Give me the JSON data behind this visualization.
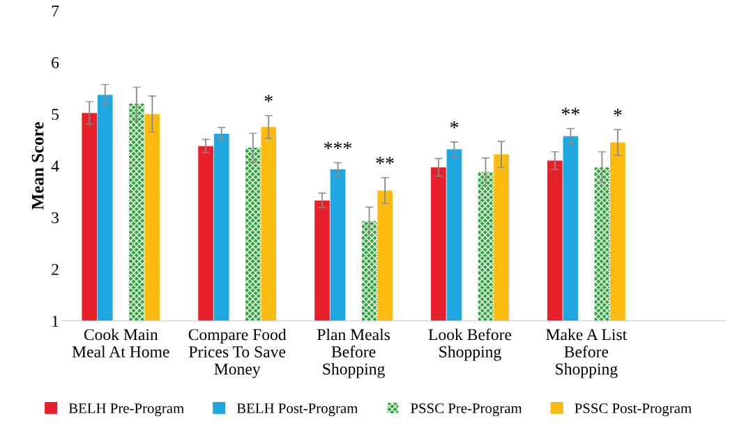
{
  "chart_data": {
    "type": "bar",
    "ylabel": "Mean Score",
    "ylim": [
      1,
      7
    ],
    "yticks": [
      1,
      2,
      3,
      4,
      5,
      6,
      7
    ],
    "grid": false,
    "legend": "bottom",
    "categories": [
      "Cook Main\nMeal At Home",
      "Compare Food\nPrices To Save\nMoney",
      "Plan Meals\nBefore\nShopping",
      "Look Before\nShopping",
      "Make A List\nBefore\nShopping"
    ],
    "series": [
      {
        "name": "BELH Pre-Program",
        "color": "#e8202a",
        "values": [
          5.02,
          4.38,
          3.33,
          3.97,
          4.1
        ],
        "errors": [
          0.22,
          0.13,
          0.14,
          0.17,
          0.17
        ]
      },
      {
        "name": "BELH Post-Program",
        "color": "#1ea7e1",
        "values": [
          5.37,
          4.62,
          3.93,
          4.32,
          4.57
        ],
        "errors": [
          0.2,
          0.12,
          0.13,
          0.14,
          0.15
        ],
        "value_labels": [
          null,
          null,
          "***",
          "*",
          "**"
        ]
      },
      {
        "name": "PSSC Pre-Program",
        "color": "#2fa83a",
        "values": [
          5.2,
          4.35,
          2.93,
          3.88,
          3.97
        ],
        "errors": [
          0.32,
          0.28,
          0.27,
          0.27,
          0.3
        ]
      },
      {
        "name": "PSSC Post-Program",
        "color": "#fbbb10",
        "values": [
          5.0,
          4.75,
          3.52,
          4.22,
          4.45
        ],
        "errors": [
          0.35,
          0.22,
          0.25,
          0.25,
          0.25
        ],
        "value_labels": [
          null,
          "*",
          "**",
          null,
          "*"
        ]
      }
    ]
  }
}
